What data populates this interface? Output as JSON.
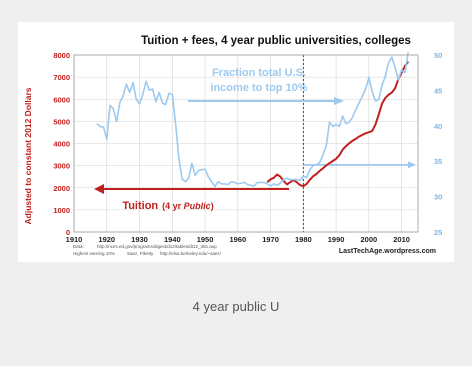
{
  "caption": "4 year public U",
  "chart_data": {
    "type": "line",
    "title": "Tuition + fees, 4 year public universities, colleges",
    "ylabel": "Adjusted to constant 2012 Dollars",
    "xlim": [
      1910,
      2015
    ],
    "ylim_left": [
      0,
      8000
    ],
    "ylim_right": [
      25,
      50
    ],
    "x_ticks": [
      "1910",
      "1920",
      "1930",
      "1940",
      "1950",
      "1960",
      "1970",
      "1980",
      "1990",
      "2000",
      "2010"
    ],
    "y_ticks_left": [
      "0",
      "1000",
      "2000",
      "3000",
      "4000",
      "5000",
      "6000",
      "7000",
      "8000"
    ],
    "y_ticks_right": [
      "25",
      "30",
      "35",
      "40",
      "45",
      "50"
    ],
    "grid": true,
    "reference_line_x": 1980,
    "annotations": {
      "income": "Fraction total U.S. income to top 10%",
      "tuition_main": "Tuition",
      "tuition_paren_open": "(4 yr ",
      "tuition_paren_word": "Public",
      "tuition_paren_close": ")"
    },
    "footer": {
      "source_data_label": "Data:",
      "source_data_url": "http://nces.ed.gov/programs/digest/d12/tables/dt12_381.asp",
      "source_income_label": "Highest earning 10%",
      "source_income_authors": "Saez, Piketty",
      "source_income_url": "http://elsa.berkeley.edu/~saez/",
      "credit": "LastTechAge.wordpress.com"
    },
    "series": [
      {
        "name": "Tuition",
        "axis": "left",
        "color": "#c0201e",
        "x": [
          1969,
          1970,
          1971,
          1972,
          1973,
          1974,
          1975,
          1976,
          1977,
          1978,
          1979,
          1980,
          1981,
          1982,
          1983,
          1984,
          1985,
          1986,
          1987,
          1988,
          1989,
          1990,
          1991,
          1992,
          1993,
          1994,
          1995,
          1996,
          1997,
          1998,
          1999,
          2000,
          2001,
          2002,
          2003,
          2004,
          2005,
          2006,
          2007,
          2008,
          2009,
          2010,
          2011,
          2012
        ],
        "values": [
          2250,
          2380,
          2450,
          2600,
          2500,
          2300,
          2150,
          2250,
          2350,
          2250,
          2120,
          2070,
          2170,
          2360,
          2520,
          2620,
          2760,
          2880,
          3010,
          3110,
          3210,
          3310,
          3470,
          3720,
          3880,
          4010,
          4120,
          4210,
          4310,
          4390,
          4460,
          4510,
          4560,
          4850,
          5300,
          5800,
          6050,
          6200,
          6300,
          6500,
          6900,
          7200,
          7500,
          7700
        ]
      },
      {
        "name": "Fraction total U.S. income to top 10%",
        "axis": "right",
        "color": "#9ccaf0",
        "x": [
          1917,
          1918,
          1919,
          1920,
          1921,
          1922,
          1923,
          1924,
          1925,
          1926,
          1927,
          1928,
          1929,
          1930,
          1931,
          1932,
          1933,
          1934,
          1935,
          1936,
          1937,
          1938,
          1939,
          1940,
          1941,
          1942,
          1943,
          1944,
          1945,
          1946,
          1947,
          1948,
          1949,
          1950,
          1951,
          1952,
          1953,
          1954,
          1955,
          1956,
          1957,
          1958,
          1959,
          1960,
          1961,
          1962,
          1963,
          1964,
          1965,
          1966,
          1967,
          1968,
          1969,
          1970,
          1971,
          1972,
          1973,
          1974,
          1975,
          1976,
          1977,
          1978,
          1979,
          1980,
          1981,
          1982,
          1983,
          1984,
          1985,
          1986,
          1987,
          1988,
          1989,
          1990,
          1991,
          1992,
          1993,
          1994,
          1995,
          1996,
          1997,
          1998,
          1999,
          2000,
          2001,
          2002,
          2003,
          2004,
          2005,
          2006,
          2007,
          2008,
          2009,
          2010,
          2011,
          2012
        ],
        "values": [
          40.3,
          39.9,
          39.8,
          38.1,
          42.9,
          42.4,
          40.6,
          43.3,
          44.2,
          45.9,
          44.7,
          46.1,
          43.8,
          43.1,
          44.4,
          46.3,
          45.0,
          45.2,
          43.4,
          44.7,
          43.2,
          43.0,
          44.6,
          44.4,
          40.3,
          35.5,
          32.5,
          32.1,
          32.6,
          34.7,
          33.0,
          33.7,
          33.8,
          33.9,
          32.8,
          32.1,
          31.4,
          32.1,
          31.8,
          31.8,
          31.7,
          32.1,
          32.0,
          31.8,
          31.9,
          32.0,
          31.7,
          31.6,
          31.5,
          32.0,
          32.0,
          32.0,
          31.8,
          31.5,
          31.8,
          31.6,
          31.9,
          32.4,
          32.6,
          32.4,
          32.4,
          32.4,
          32.3,
          32.9,
          32.7,
          33.8,
          34.4,
          34.5,
          34.8,
          35.9,
          37.2,
          40.5,
          39.9,
          40.2,
          39.9,
          41.4,
          40.3,
          40.5,
          41.2,
          42.3,
          43.2,
          44.2,
          45.2,
          46.8,
          44.9,
          43.5,
          43.7,
          45.7,
          46.9,
          48.9,
          49.7,
          48.2,
          46.5,
          47.9,
          47.5,
          50.4
        ]
      }
    ]
  }
}
